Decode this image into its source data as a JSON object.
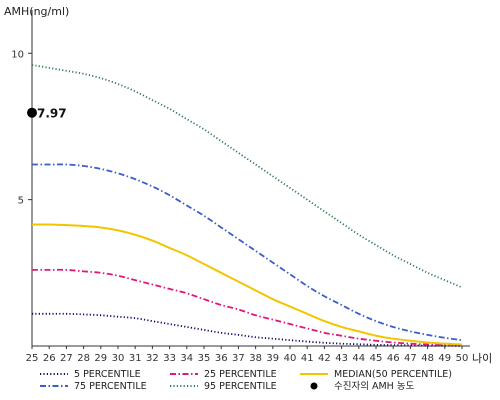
{
  "chart_data": {
    "type": "line",
    "ylabel": "AMH(ng/ml)",
    "xlabel": "나이",
    "xlim": [
      25,
      50
    ],
    "ylim": [
      0,
      11
    ],
    "x": [
      25,
      26,
      27,
      28,
      29,
      30,
      31,
      32,
      33,
      34,
      35,
      36,
      37,
      38,
      39,
      40,
      41,
      42,
      43,
      44,
      45,
      46,
      47,
      48,
      49,
      50
    ],
    "x_ticks": [
      "25",
      "26",
      "27",
      "28",
      "29",
      "30",
      "31",
      "32",
      "33",
      "34",
      "35",
      "36",
      "37",
      "38",
      "39",
      "40",
      "41",
      "42",
      "43",
      "44",
      "45",
      "46",
      "47",
      "48",
      "49",
      "50"
    ],
    "y_ticks": [
      5,
      10
    ],
    "series": [
      {
        "name": "5 PERCENTILE",
        "color": "#0a0a6e",
        "dash": "dot",
        "values": [
          1.1,
          1.1,
          1.1,
          1.08,
          1.05,
          1.0,
          0.95,
          0.85,
          0.75,
          0.65,
          0.55,
          0.45,
          0.38,
          0.3,
          0.25,
          0.2,
          0.15,
          0.11,
          0.08,
          0.06,
          0.04,
          0.03,
          0.02,
          0.01,
          0.01,
          0.0
        ]
      },
      {
        "name": "25 PERCENTILE",
        "color": "#e0187c",
        "dash": "dashdot",
        "values": [
          2.6,
          2.6,
          2.6,
          2.55,
          2.5,
          2.4,
          2.25,
          2.1,
          1.95,
          1.8,
          1.6,
          1.4,
          1.25,
          1.05,
          0.9,
          0.75,
          0.6,
          0.45,
          0.35,
          0.25,
          0.18,
          0.12,
          0.08,
          0.05,
          0.03,
          0.02
        ]
      },
      {
        "name": "MEDIAN(50 PERCENTILE)",
        "color": "#f2c500",
        "dash": "solid",
        "values": [
          4.15,
          4.15,
          4.13,
          4.1,
          4.05,
          3.95,
          3.8,
          3.6,
          3.35,
          3.1,
          2.8,
          2.5,
          2.2,
          1.9,
          1.6,
          1.35,
          1.1,
          0.85,
          0.65,
          0.5,
          0.35,
          0.25,
          0.18,
          0.12,
          0.08,
          0.05
        ]
      },
      {
        "name": "75 PERCENTILE",
        "color": "#3a5fc8",
        "dash": "dashdot",
        "values": [
          6.2,
          6.2,
          6.2,
          6.15,
          6.05,
          5.9,
          5.7,
          5.45,
          5.15,
          4.8,
          4.45,
          4.05,
          3.65,
          3.25,
          2.85,
          2.45,
          2.05,
          1.7,
          1.4,
          1.1,
          0.85,
          0.65,
          0.5,
          0.38,
          0.28,
          0.2
        ]
      },
      {
        "name": "95 PERCENTILE",
        "color": "#2e7d4f",
        "dash": "dot",
        "values": [
          9.6,
          9.5,
          9.4,
          9.3,
          9.15,
          8.95,
          8.7,
          8.4,
          8.1,
          7.75,
          7.4,
          7.0,
          6.6,
          6.2,
          5.8,
          5.4,
          5.0,
          4.6,
          4.2,
          3.8,
          3.45,
          3.1,
          2.8,
          2.5,
          2.25,
          2.0
        ]
      }
    ],
    "marker": {
      "name": "수진자의 AMH 농도",
      "x": 25,
      "y": 7.97,
      "label": "7.97",
      "color": "#000000"
    },
    "legend": {
      "placement": "bottom",
      "items": [
        {
          "label": "5 PERCENTILE",
          "color": "#0a0a6e",
          "dash": "dot",
          "kind": "line"
        },
        {
          "label": "25 PERCENTILE",
          "color": "#e0187c",
          "dash": "dashdot",
          "kind": "line"
        },
        {
          "label": "MEDIAN(50 PERCENTILE)",
          "color": "#f2c500",
          "dash": "solid",
          "kind": "line"
        },
        {
          "label": "75 PERCENTILE",
          "color": "#3a5fc8",
          "dash": "dashdot",
          "kind": "line"
        },
        {
          "label": "95 PERCENTILE",
          "color": "#2e7d4f",
          "dash": "dot",
          "kind": "line"
        },
        {
          "label": "수진자의 AMH 농도",
          "color": "#000000",
          "dash": "solid",
          "kind": "dot"
        }
      ]
    },
    "grid": false
  }
}
